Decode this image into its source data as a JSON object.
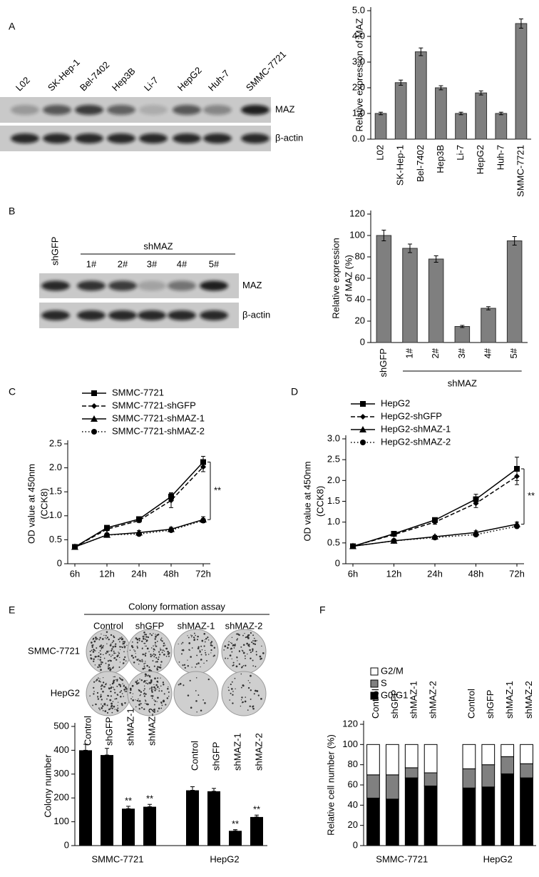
{
  "panel_labels": [
    "A",
    "B",
    "C",
    "D",
    "E",
    "F"
  ],
  "blot_a": {
    "lanes": [
      "L02",
      "SK-Hep-1",
      "Bel-7402",
      "Hep3B",
      "Li-7",
      "HepG2",
      "Huh-7",
      "SMMC-7721"
    ],
    "rows": [
      "MAZ",
      "β-actin"
    ]
  },
  "blot_b": {
    "lanes": [
      "shGFP",
      "1#",
      "2#",
      "3#",
      "4#",
      "5#"
    ],
    "group": "shMAZ",
    "rows": [
      "MAZ",
      "β-actin"
    ]
  },
  "colony": {
    "title": "Colony formation assay",
    "columns": [
      "Control",
      "shGFP",
      "shMAZ-1",
      "shMAZ-2"
    ],
    "rows": [
      "SMMC-7721",
      "HepG2"
    ]
  },
  "chart_data": [
    {
      "type": "bar",
      "y_label": [
        "Relative expression of MAZ"
      ],
      "categories": [
        "L02",
        "SK-Hep-1",
        "Bel-7402",
        "Hep3B",
        "Li-7",
        "HepG2",
        "Huh-7",
        "SMMC-7721"
      ],
      "values": [
        1.0,
        2.2,
        3.4,
        2.0,
        1.0,
        1.8,
        1.0,
        4.5
      ],
      "errors": [
        0.05,
        0.1,
        0.15,
        0.08,
        0.05,
        0.08,
        0.05,
        0.18
      ],
      "color": "#7f7f7f",
      "ylim": [
        0,
        5
      ],
      "yticks": [
        {
          "value": 0,
          "label": "0.0"
        },
        {
          "value": 1,
          "label": "1.0"
        },
        {
          "value": 2,
          "label": "2.0"
        },
        {
          "value": 3,
          "label": "3.0"
        },
        {
          "value": 4,
          "label": "4.0"
        },
        {
          "value": 5,
          "label": "5.0"
        }
      ]
    },
    {
      "type": "bar",
      "y_label": [
        "Relative expression",
        "of MAZ (%)"
      ],
      "categories": [
        "shGFP",
        "1#",
        "2#",
        "3#",
        "4#",
        "5#"
      ],
      "group_label": "shMAZ",
      "values": [
        100,
        88,
        78,
        15,
        32,
        95
      ],
      "errors": [
        5,
        4,
        3,
        1,
        1.5,
        4
      ],
      "color": "#7f7f7f",
      "ylim": [
        0,
        120
      ],
      "yticks": [
        0,
        20,
        40,
        60,
        80,
        100,
        120
      ]
    },
    {
      "type": "line",
      "y_label": [
        "OD value at 450nm",
        "(CCK8)"
      ],
      "categories": [
        "6h",
        "12h",
        "24h",
        "48h",
        "72h"
      ],
      "series": [
        {
          "name": "SMMC-7721",
          "color": "#000000",
          "marker": "square",
          "dash": "solid",
          "values": [
            0.35,
            0.75,
            0.93,
            1.4,
            2.12
          ],
          "errors": [
            0.02,
            0.03,
            0.04,
            0.08,
            0.12
          ]
        },
        {
          "name": "SMMC-7721-shGFP",
          "color": "#000000",
          "marker": "diamond",
          "dash": "dashed",
          "values": [
            0.35,
            0.72,
            0.9,
            1.32,
            2.02
          ],
          "errors": [
            0.02,
            0.03,
            0.04,
            0.15,
            0.1
          ]
        },
        {
          "name": "SMMC-7721-shMAZ-1",
          "color": "#000000",
          "marker": "triangle",
          "dash": "solid",
          "values": [
            0.35,
            0.6,
            0.65,
            0.72,
            0.92
          ],
          "errors": [
            0.02,
            0.03,
            0.04,
            0.04,
            0.06
          ]
        },
        {
          "name": "SMMC-7721-shMAZ-2",
          "color": "#000000",
          "marker": "circle",
          "dash": "dotted",
          "values": [
            0.35,
            0.6,
            0.62,
            0.7,
            0.9
          ],
          "errors": [
            0.02,
            0.03,
            0.03,
            0.03,
            0.04
          ]
        }
      ],
      "annotation": "**",
      "ylim": [
        0,
        2.5
      ],
      "yticks": [
        0,
        0.5,
        {
          "value": 1,
          "label": "1.0"
        },
        1.5,
        {
          "value": 2,
          "label": "2.0"
        },
        2.5
      ]
    },
    {
      "type": "line",
      "y_label": [
        "OD value at 450nm",
        "(CCK8)"
      ],
      "categories": [
        "6h",
        "12h",
        "24h",
        "48h",
        "72h"
      ],
      "series": [
        {
          "name": "HepG2",
          "color": "#000000",
          "marker": "square",
          "dash": "solid",
          "values": [
            0.42,
            0.72,
            1.05,
            1.55,
            2.28
          ],
          "errors": [
            0.02,
            0.04,
            0.05,
            0.12,
            0.28
          ]
        },
        {
          "name": "HepG2-shGFP",
          "color": "#000000",
          "marker": "diamond",
          "dash": "dashed",
          "values": [
            0.42,
            0.7,
            1.0,
            1.45,
            2.1
          ],
          "errors": [
            0.02,
            0.04,
            0.05,
            0.1,
            0.2
          ]
        },
        {
          "name": "HepG2-shMAZ-1",
          "color": "#000000",
          "marker": "triangle",
          "dash": "solid",
          "values": [
            0.42,
            0.55,
            0.65,
            0.75,
            0.95
          ],
          "errors": [
            0.02,
            0.03,
            0.03,
            0.04,
            0.05
          ]
        },
        {
          "name": "HepG2-shMAZ-2",
          "color": "#000000",
          "marker": "circle",
          "dash": "dotted",
          "values": [
            0.42,
            0.55,
            0.63,
            0.7,
            0.9
          ],
          "errors": [
            0.02,
            0.03,
            0.03,
            0.03,
            0.04
          ]
        }
      ],
      "annotation": "**",
      "ylim": [
        0,
        3
      ],
      "yticks": [
        0,
        0.5,
        {
          "value": 1,
          "label": "1.0"
        },
        1.5,
        {
          "value": 2,
          "label": "2.0"
        },
        2.5,
        {
          "value": 3,
          "label": "3.0"
        }
      ]
    },
    {
      "type": "grouped_bar",
      "y_label": [
        "Colony number"
      ],
      "groups": [
        "SMMC-7721",
        "HepG2"
      ],
      "categories": [
        "Control",
        "shGFP",
        "shMAZ-1",
        "shMAZ-2"
      ],
      "values": [
        [
          400,
          380,
          155,
          163
        ],
        [
          232,
          228,
          62,
          120
        ]
      ],
      "errors": [
        [
          25,
          28,
          10,
          10
        ],
        [
          15,
          12,
          5,
          8
        ]
      ],
      "significance": [
        [
          null,
          null,
          "**",
          "**"
        ],
        [
          null,
          null,
          "**",
          "**"
        ]
      ],
      "color": "#000000",
      "ylim": [
        0,
        500
      ],
      "yticks": [
        0,
        100,
        200,
        300,
        400,
        500
      ]
    },
    {
      "type": "stacked_bar",
      "y_label": [
        "Relative cell number (%)"
      ],
      "groups": [
        "SMMC-7721",
        "HepG2"
      ],
      "categories": [
        "Control",
        "shGFP",
        "shMAZ-1",
        "shMAZ-2"
      ],
      "series": [
        {
          "name": "G2/M",
          "color": "#ffffff",
          "values": [
            [
              30,
              30,
              23,
              28
            ],
            [
              24,
              20,
              12,
              19
            ]
          ]
        },
        {
          "name": "S",
          "color": "#808080",
          "values": [
            [
              23,
              24,
              10,
              13
            ],
            [
              19,
              22,
              17,
              14
            ]
          ]
        },
        {
          "name": "G0/G1",
          "color": "#000000",
          "values": [
            [
              47,
              46,
              67,
              59
            ],
            [
              57,
              58,
              71,
              67
            ]
          ]
        }
      ],
      "ylim": [
        0,
        120
      ],
      "yticks": [
        0,
        20,
        40,
        60,
        80,
        100,
        120
      ]
    }
  ]
}
